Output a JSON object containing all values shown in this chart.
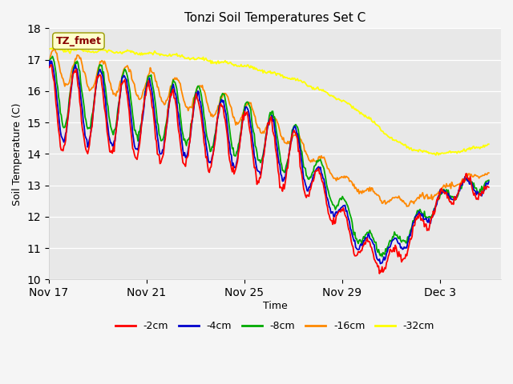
{
  "title": "Tonzi Soil Temperatures Set C",
  "xlabel": "Time",
  "ylabel": "Soil Temperature (C)",
  "ylim": [
    10.0,
    18.0
  ],
  "yticks": [
    10.0,
    11.0,
    12.0,
    13.0,
    14.0,
    15.0,
    16.0,
    17.0,
    18.0
  ],
  "xtick_labels": [
    "Nov 17",
    "Nov 21",
    "Nov 25",
    "Nov 29",
    "Dec 3"
  ],
  "xtick_pos": [
    0,
    4,
    8,
    12,
    16
  ],
  "xlim": [
    0,
    18.5
  ],
  "fig_bg_color": "#f5f5f5",
  "plot_bg_color": "#e8e8e8",
  "grid_color": "#ffffff",
  "legend_labels": [
    "-2cm",
    "-4cm",
    "-8cm",
    "-16cm",
    "-32cm"
  ],
  "legend_colors": [
    "#ff0000",
    "#0000cc",
    "#00aa00",
    "#ff8800",
    "#ffff00"
  ],
  "annotation_text": "TZ_fmet",
  "annotation_bg": "#ffffcc",
  "annotation_color": "#880000",
  "annotation_border": "#999900",
  "line_width": 1.3,
  "n_points": 500,
  "seed": 42
}
